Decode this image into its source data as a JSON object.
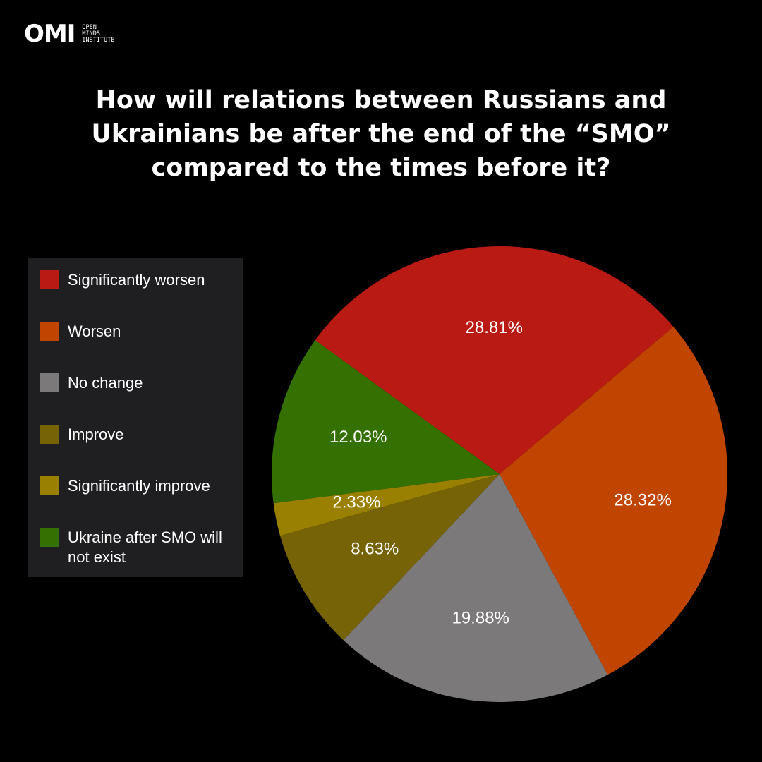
{
  "logo": {
    "mark": "OMI",
    "lines": [
      "OPEN",
      "MINDS",
      "INSTITUTE"
    ]
  },
  "chart_data": {
    "type": "pie",
    "title": "How will relations between Russians and Ukrainians be after the end of the “SMO” compared to the times before it?",
    "categories": [
      "Significantly worsen",
      "Worsen",
      "No change",
      "Improve",
      "Significantly improve",
      "Ukraine after SMO will not exist"
    ],
    "values": [
      28.81,
      28.32,
      19.88,
      8.63,
      2.33,
      12.03
    ],
    "value_labels": [
      "28.81%",
      "28.32%",
      "19.88%",
      "8.63%",
      "2.33%",
      "12.03%"
    ],
    "colors": [
      "#b91a13",
      "#bf4500",
      "#7b797a",
      "#766305",
      "#998000",
      "#357003"
    ],
    "legend": "left"
  }
}
